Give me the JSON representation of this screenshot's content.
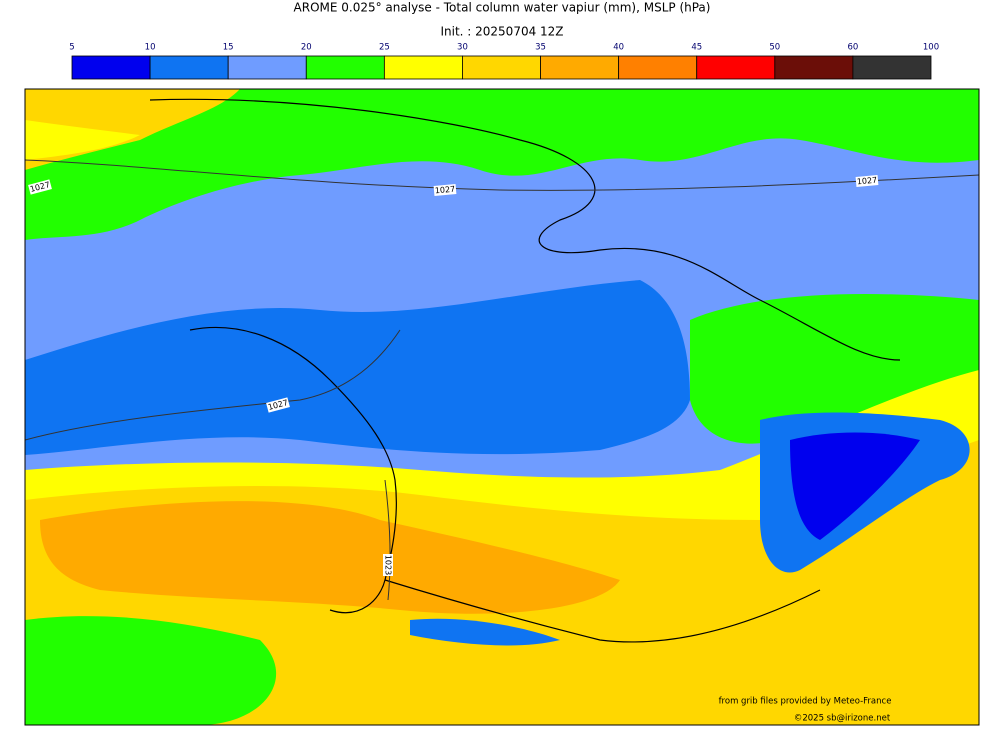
{
  "title": "AROME 0.025° analyse - Total column water vapiur (mm), MSLP (hPa)",
  "subtitle": "Init. : 20250704 12Z",
  "colorbar": {
    "ticks": [
      5,
      10,
      15,
      20,
      25,
      30,
      35,
      40,
      45,
      50,
      60,
      100
    ],
    "colors": [
      "#0000ee",
      "#0f74f2",
      "#6f9cff",
      "#22ff00",
      "#ffff00",
      "#ffd700",
      "#ffaa00",
      "#ff8000",
      "#ff0000",
      "#6b0e08",
      "#333333"
    ]
  },
  "isobar_labels": [
    "1027",
    "1027",
    "1027",
    "1027",
    "1023"
  ],
  "credits": [
    "from grib files provided by Meteo-France",
    "©2025 sb@irizone.net"
  ]
}
